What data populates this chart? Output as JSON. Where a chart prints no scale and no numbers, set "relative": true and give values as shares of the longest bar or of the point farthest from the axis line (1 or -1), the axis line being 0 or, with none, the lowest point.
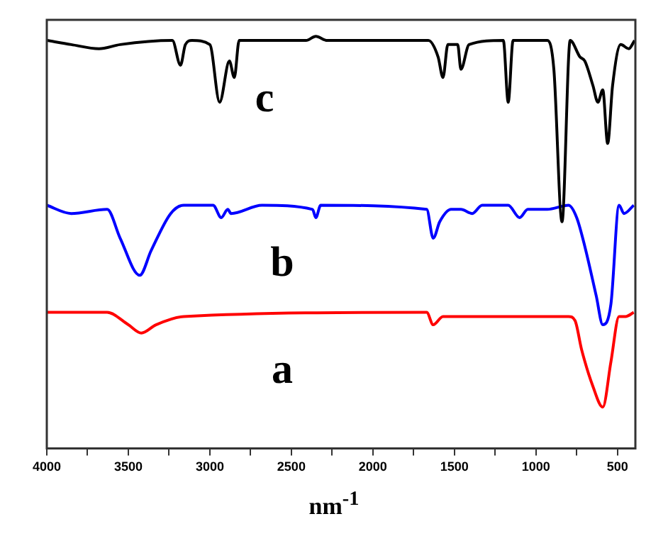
{
  "chart_data": {
    "type": "line",
    "xlabel": "nm$^{-1}$",
    "relative": true,
    "xlim": [
      4000,
      390
    ],
    "xticks": [
      4000,
      {
        "value": 3750,
        "label": null
      },
      3500,
      {
        "value": 3250,
        "label": null
      },
      3000,
      {
        "value": 2750,
        "label": null
      },
      2500,
      {
        "value": 2250,
        "label": null
      },
      2000,
      {
        "value": 1750,
        "label": null
      },
      1500,
      {
        "value": 1250,
        "label": null
      },
      1000,
      {
        "value": 750,
        "label": null
      },
      500
    ],
    "marker": "none",
    "series": [
      {
        "name": "c",
        "color": "#000000",
        "x": [
          4000,
          3850,
          3680,
          3550,
          3230,
          3180,
          3150,
          3110,
          3000,
          2940,
          2880,
          2850,
          2820,
          2410,
          2350,
          2280,
          1660,
          1600,
          1570,
          1540,
          1480,
          1460,
          1410,
          1200,
          1170,
          1140,
          930,
          890,
          840,
          790,
          730,
          700,
          650,
          620,
          590,
          560,
          530,
          480,
          430,
          395
        ],
        "values": [
          0.99,
          0.98,
          0.97,
          0.98,
          0.99,
          0.93,
          0.98,
          0.99,
          0.98,
          0.84,
          0.94,
          0.9,
          0.99,
          0.99,
          1.0,
          0.99,
          0.99,
          0.95,
          0.9,
          0.98,
          0.98,
          0.92,
          0.98,
          0.99,
          0.84,
          0.99,
          0.99,
          0.92,
          0.55,
          0.99,
          0.95,
          0.94,
          0.88,
          0.84,
          0.87,
          0.74,
          0.88,
          0.98,
          0.97,
          0.99
        ]
      },
      {
        "name": "b",
        "color": "#0000ff",
        "x": [
          4000,
          3850,
          3630,
          3550,
          3430,
          3360,
          3240,
          3160,
          2980,
          2930,
          2890,
          2870,
          2680,
          2370,
          2350,
          2320,
          1670,
          1630,
          1590,
          1520,
          1460,
          1390,
          1330,
          1170,
          1100,
          1050,
          930,
          800,
          750,
          700,
          630,
          590,
          540,
          490,
          460,
          400
        ],
        "values": [
          0.59,
          0.57,
          0.58,
          0.51,
          0.42,
          0.48,
          0.57,
          0.59,
          0.59,
          0.56,
          0.58,
          0.57,
          0.59,
          0.58,
          0.56,
          0.59,
          0.58,
          0.51,
          0.55,
          0.58,
          0.58,
          0.57,
          0.59,
          0.59,
          0.56,
          0.58,
          0.58,
          0.59,
          0.56,
          0.49,
          0.37,
          0.3,
          0.35,
          0.59,
          0.57,
          0.59
        ]
      },
      {
        "name": "a",
        "color": "#ff0000",
        "x": [
          4000,
          3630,
          3500,
          3420,
          3330,
          3160,
          1670,
          1630,
          1570,
          800,
          760,
          720,
          650,
          590,
          540,
          490,
          450,
          400
        ],
        "values": [
          0.33,
          0.33,
          0.3,
          0.28,
          0.3,
          0.32,
          0.33,
          0.3,
          0.32,
          0.32,
          0.31,
          0.24,
          0.15,
          0.1,
          0.21,
          0.32,
          0.32,
          0.33
        ]
      }
    ]
  }
}
